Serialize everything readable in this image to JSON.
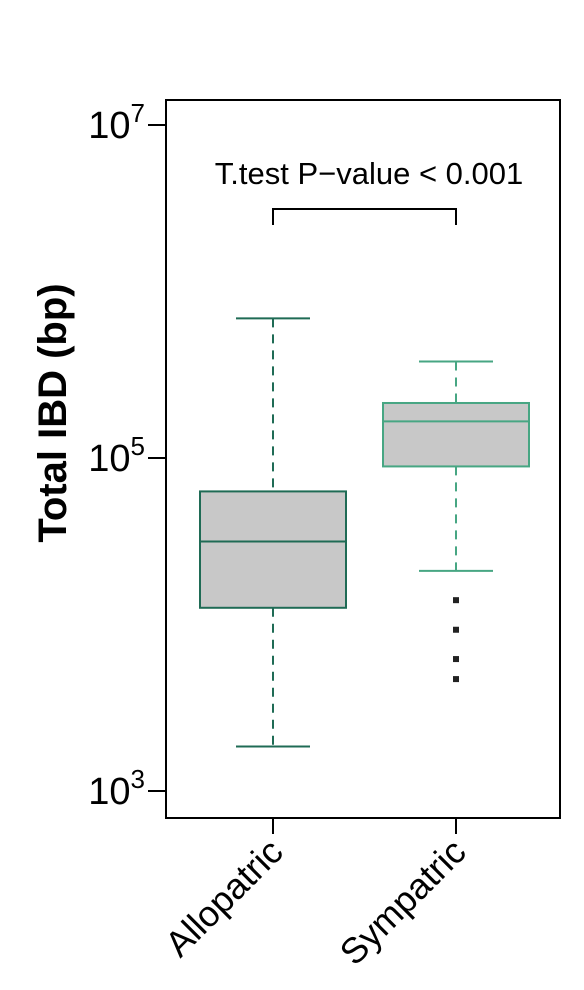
{
  "chart_data": {
    "type": "box",
    "ylabel": "Total IBD (bp)",
    "y_scale": "log10",
    "ylim": [
      800,
      12000000
    ],
    "yticks": [
      {
        "value": 1000,
        "base": "10",
        "exp": "3"
      },
      {
        "value": 100000,
        "base": "10",
        "exp": "5"
      },
      {
        "value": 10000000,
        "base": "10",
        "exp": "7"
      }
    ],
    "categories": [
      "Allopatric",
      "Sympatric"
    ],
    "boxes": [
      {
        "name": "Allopatric",
        "color": "#1f6b55",
        "whisker_low": 1850,
        "q1": 12600,
        "median": 31500,
        "q3": 63000,
        "whisker_high": 690000,
        "outliers": []
      },
      {
        "name": "Sympatric",
        "color": "#47a683",
        "whisker_low": 21000,
        "q1": 89000,
        "median": 166000,
        "q3": 214000,
        "whisker_high": 380000,
        "outliers": [
          14000,
          9300,
          6200,
          4700
        ]
      }
    ],
    "annotation": "T.test P−value < 0.001",
    "box_fill": "#c8c8c8",
    "grid": false,
    "legend": "none"
  }
}
